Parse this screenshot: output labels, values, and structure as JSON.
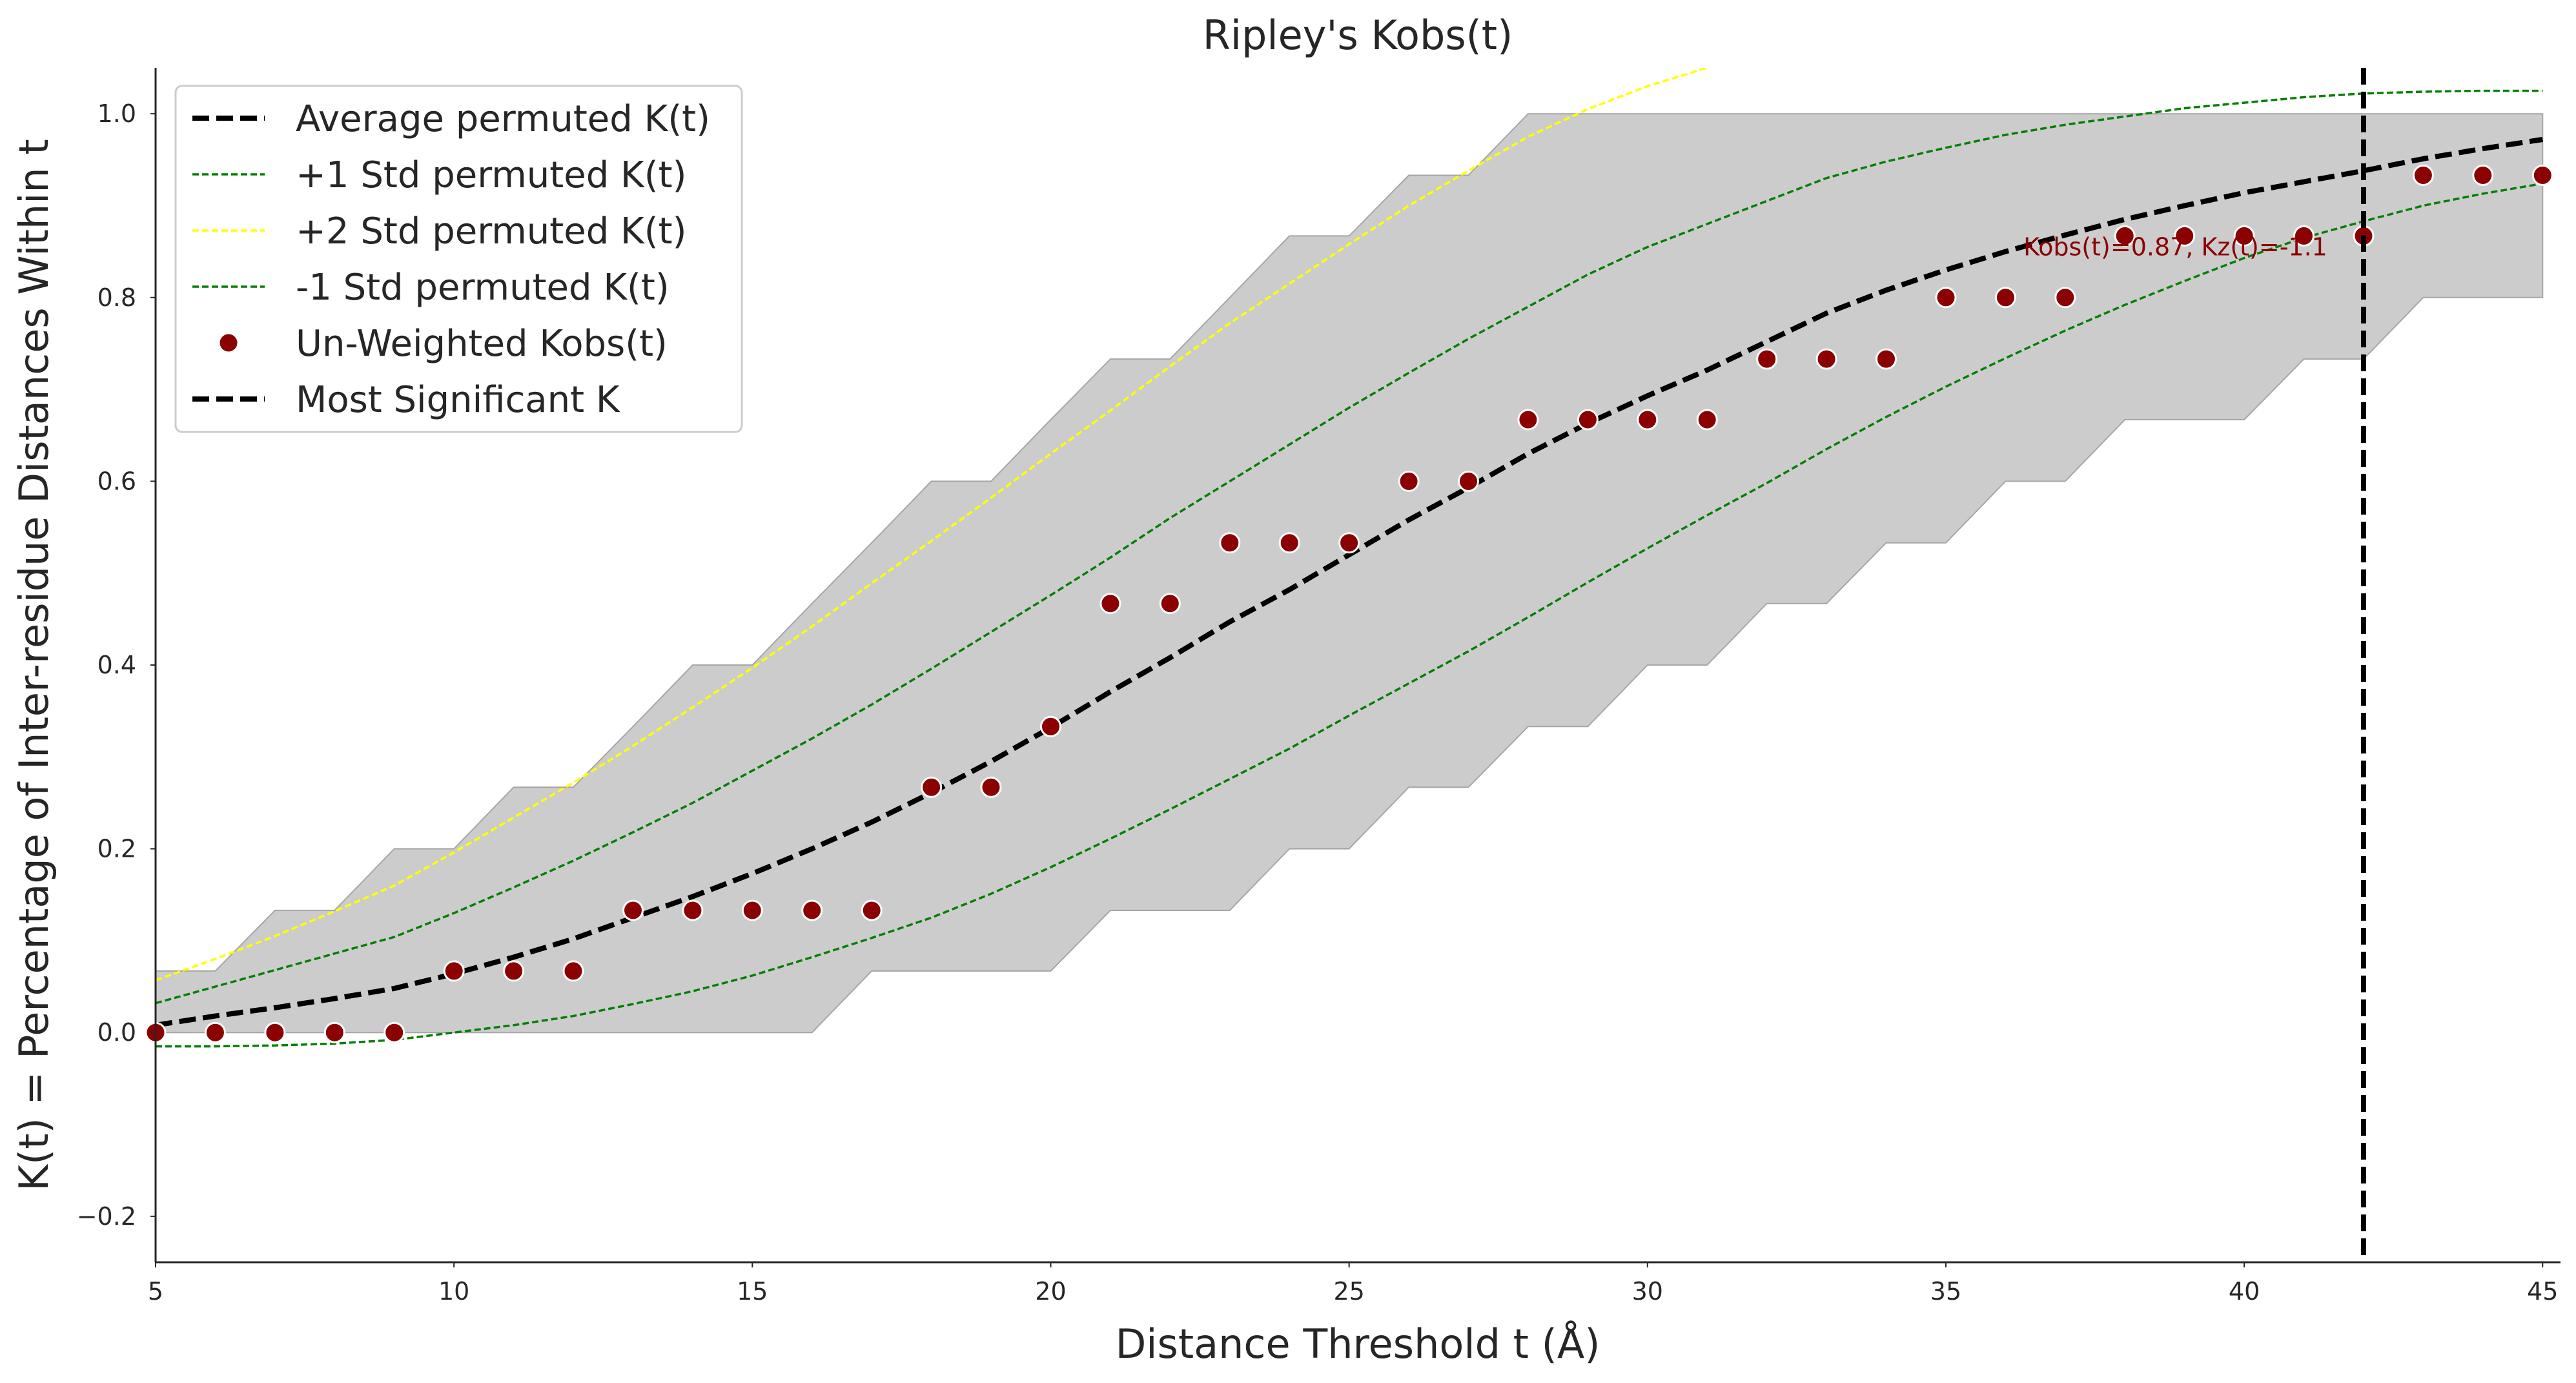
{
  "chart_data": {
    "type": "line",
    "title": "Ripley's Kobs(t)",
    "xlabel": "Distance Threshold t (Å)",
    "ylabel": "K(t) = Percentage of Inter-residue Distances Within t",
    "xlim": [
      5,
      45.3
    ],
    "ylim": [
      -0.25,
      1.05
    ],
    "x_ticks": [
      5,
      10,
      15,
      20,
      25,
      30,
      35,
      40,
      45
    ],
    "y_ticks": [
      -0.2,
      0.0,
      0.2,
      0.4,
      0.6,
      0.8,
      1.0
    ],
    "x_tick_labels": [
      "5",
      "10",
      "15",
      "20",
      "25",
      "30",
      "35",
      "40",
      "45"
    ],
    "y_tick_labels": [
      "−0.2",
      "0.0",
      "0.2",
      "0.4",
      "0.6",
      "0.8",
      "1.0"
    ],
    "grid": false,
    "legend_placement": "top-left",
    "x": [
      5,
      6,
      7,
      8,
      9,
      10,
      11,
      12,
      13,
      14,
      15,
      16,
      17,
      18,
      19,
      20,
      21,
      22,
      23,
      24,
      25,
      26,
      27,
      28,
      29,
      30,
      31,
      32,
      33,
      34,
      35,
      36,
      37,
      38,
      39,
      40,
      41,
      42,
      43,
      44,
      45
    ],
    "band": {
      "upper": [
        0.067,
        0.067,
        0.133,
        0.133,
        0.2,
        0.2,
        0.267,
        0.267,
        0.333,
        0.4,
        0.4,
        0.467,
        0.533,
        0.6,
        0.6,
        0.667,
        0.733,
        0.733,
        0.8,
        0.867,
        0.867,
        0.933,
        0.933,
        1.0,
        1.0,
        1.0,
        1.0,
        1.0,
        1.0,
        1.0,
        1.0,
        1.0,
        1.0,
        1.0,
        1.0,
        1.0,
        1.0,
        1.0,
        1.0,
        1.0,
        1.0
      ],
      "lower": [
        0.0,
        0.0,
        0.0,
        0.0,
        0.0,
        0.0,
        0.0,
        0.0,
        0.0,
        0.0,
        0.0,
        0.0,
        0.067,
        0.067,
        0.067,
        0.067,
        0.133,
        0.133,
        0.133,
        0.2,
        0.2,
        0.267,
        0.267,
        0.333,
        0.333,
        0.4,
        0.4,
        0.467,
        0.467,
        0.533,
        0.533,
        0.6,
        0.6,
        0.667,
        0.667,
        0.667,
        0.733,
        0.733,
        0.8,
        0.8,
        0.8
      ],
      "color": "#cccccc"
    },
    "series": [
      {
        "name": "Average permuted K(t)",
        "style": "dashed",
        "color": "#000000",
        "values": [
          0.008,
          0.018,
          0.027,
          0.037,
          0.048,
          0.064,
          0.082,
          0.102,
          0.125,
          0.148,
          0.173,
          0.2,
          0.229,
          0.261,
          0.295,
          0.332,
          0.371,
          0.408,
          0.447,
          0.482,
          0.52,
          0.558,
          0.593,
          0.63,
          0.663,
          0.693,
          0.721,
          0.752,
          0.783,
          0.808,
          0.83,
          0.85,
          0.868,
          0.885,
          0.9,
          0.914,
          0.926,
          0.938,
          0.951,
          0.962,
          0.972
        ]
      },
      {
        "name": "+1 Std permuted K(t)",
        "style": "dashed",
        "color": "#008000",
        "values": [
          0.032,
          0.05,
          0.068,
          0.086,
          0.104,
          0.13,
          0.158,
          0.187,
          0.218,
          0.25,
          0.285,
          0.32,
          0.357,
          0.396,
          0.436,
          0.476,
          0.517,
          0.56,
          0.6,
          0.64,
          0.68,
          0.718,
          0.755,
          0.79,
          0.825,
          0.855,
          0.88,
          0.905,
          0.93,
          0.948,
          0.963,
          0.977,
          0.988,
          0.997,
          1.006,
          1.012,
          1.018,
          1.022,
          1.024,
          1.025,
          1.025
        ]
      },
      {
        "name": "+2 Std permuted K(t)",
        "style": "dashed",
        "color": "#ffff00",
        "values": [
          0.057,
          0.08,
          0.105,
          0.132,
          0.16,
          0.196,
          0.234,
          0.272,
          0.312,
          0.354,
          0.397,
          0.442,
          0.489,
          0.535,
          0.582,
          0.63,
          0.677,
          0.725,
          0.772,
          0.815,
          0.858,
          0.9,
          0.938,
          0.975,
          1.005,
          1.03,
          1.05,
          null,
          null,
          null,
          null,
          null,
          null,
          null,
          null,
          null,
          null,
          null,
          null,
          null,
          null
        ]
      },
      {
        "name": "-1 Std permuted K(t)",
        "style": "dashed",
        "color": "#008000",
        "values": [
          -0.015,
          -0.015,
          -0.014,
          -0.012,
          -0.008,
          0.0,
          0.008,
          0.018,
          0.031,
          0.045,
          0.062,
          0.082,
          0.103,
          0.125,
          0.151,
          0.18,
          0.211,
          0.243,
          0.276,
          0.309,
          0.345,
          0.38,
          0.415,
          0.452,
          0.49,
          0.527,
          0.563,
          0.598,
          0.635,
          0.67,
          0.703,
          0.734,
          0.764,
          0.792,
          0.818,
          0.843,
          0.865,
          0.883,
          0.9,
          0.913,
          0.924
        ]
      },
      {
        "name": "Un-Weighted Kobs(t)",
        "style": "points",
        "color": "#8b0000",
        "values": [
          0.0,
          0.0,
          0.0,
          0.0,
          0.0,
          0.067,
          0.067,
          0.067,
          0.133,
          0.133,
          0.133,
          0.133,
          0.133,
          0.267,
          0.267,
          0.333,
          0.467,
          0.467,
          0.533,
          0.533,
          0.533,
          0.6,
          0.6,
          0.667,
          0.667,
          0.667,
          0.667,
          0.733,
          0.733,
          0.733,
          0.8,
          0.8,
          0.8,
          0.867,
          0.867,
          0.867,
          0.867,
          0.867,
          0.933,
          0.933,
          0.933
        ]
      }
    ],
    "vline": {
      "name": "Most Significant K",
      "x": 42,
      "style": "dashed",
      "color": "#000000"
    },
    "annotation": {
      "text": "Kobs(t)=0.87, Kz(t)=-1.1",
      "x": 36.3,
      "y": 0.855,
      "color": "#8b0000"
    },
    "legend": [
      {
        "label": "Average permuted K(t)",
        "kind": "line",
        "color": "#000000",
        "thick": true
      },
      {
        "label": "+1 Std permuted K(t)",
        "kind": "line",
        "color": "#008000",
        "thick": false
      },
      {
        "label": "+2 Std permuted K(t)",
        "kind": "line",
        "color": "#ffff00",
        "thick": false
      },
      {
        "label": "-1 Std permuted K(t)",
        "kind": "line",
        "color": "#008000",
        "thick": false
      },
      {
        "label": "Un-Weighted Kobs(t)",
        "kind": "point",
        "color": "#8b0000",
        "thick": false
      },
      {
        "label": "Most Significant K",
        "kind": "line",
        "color": "#000000",
        "thick": true
      }
    ]
  }
}
